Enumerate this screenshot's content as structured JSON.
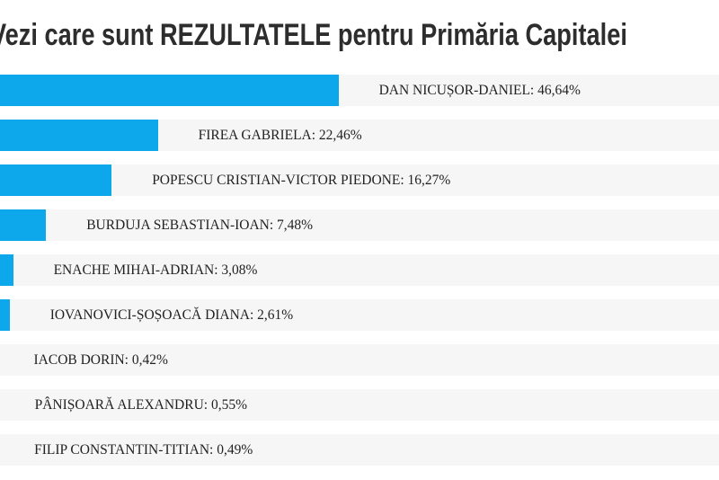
{
  "header": {
    "title": "Vezi care sunt REZULTATELE pentru Primăria Capitalei",
    "title_color": "#2d2d2d"
  },
  "chart_data": {
    "type": "bar",
    "orientation": "horizontal",
    "title": "Vezi care sunt REZULTATELE pentru Primăria Capitalei",
    "unit": "%",
    "decimal_style": "comma",
    "bar_color": "#0da8ec",
    "row_background": "#f7f6f6",
    "xlim": [
      0,
      100
    ],
    "grid": false,
    "legend": false,
    "categories": [
      "DAN NICUȘOR-DANIEL",
      "FIREA GABRIELA",
      "POPESCU CRISTIAN-VICTOR PIEDONE",
      "BURDUJA SEBASTIAN-IOAN",
      "ENACHE MIHAI-ADRIAN",
      "IOVANOVICI-ȘOȘOACĂ DIANA",
      "IACOB DORIN",
      "PÂNIȘOARĂ ALEXANDRU",
      "FILIP CONSTANTIN-TITIAN"
    ],
    "values": [
      46.64,
      22.46,
      16.27,
      7.48,
      3.08,
      2.61,
      0.42,
      0.55,
      0.49
    ],
    "labels": [
      "DAN NICUȘOR-DANIEL: 46,64%",
      "FIREA GABRIELA: 22,46%",
      "POPESCU CRISTIAN-VICTOR PIEDONE: 16,27%",
      "BURDUJA SEBASTIAN-IOAN: 7,48%",
      "ENACHE MIHAI-ADRIAN: 3,08%",
      "IOVANOVICI-ȘOȘOACĂ DIANA: 2,61%",
      "IACOB DORIN: 0,42%",
      "PÂNIȘOARĂ ALEXANDRU: 0,55%",
      "FILIP CONSTANTIN-TITIAN: 0,49%"
    ]
  }
}
